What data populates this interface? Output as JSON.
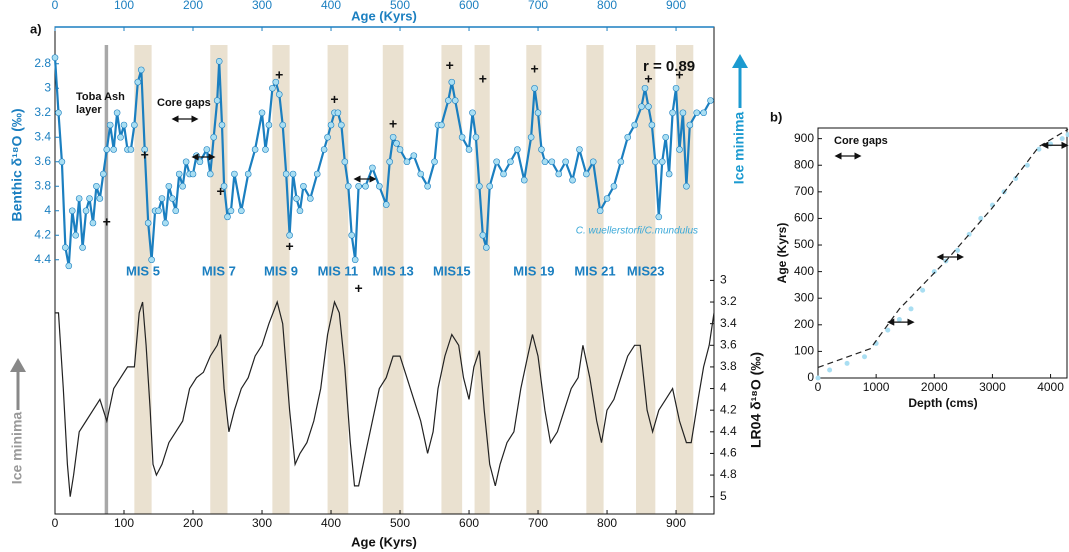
{
  "chart_data": [
    {
      "type": "line",
      "panel_label": "a)",
      "xlabel": "Age (Kyrs)",
      "x2label": "Age (Kyrs)",
      "ylabel": "Benthic δ¹⁸O (‰)",
      "y2label": "LR04 δ¹⁸O (‰)",
      "xlim": [
        0,
        955
      ],
      "xticks": [
        0,
        100,
        200,
        300,
        400,
        500,
        600,
        700,
        800,
        900
      ],
      "ylim": [
        2.5,
        4.5
      ],
      "y_inverted": true,
      "yticks": [
        2.8,
        3,
        3.2,
        3.4,
        3.6,
        3.8,
        4,
        4.2,
        4.4
      ],
      "y2lim": [
        2.95,
        5.16
      ],
      "y2ticks": [
        3,
        3.2,
        3.4,
        3.6,
        3.8,
        4,
        4.2,
        4.4,
        4.6,
        4.8,
        5
      ],
      "series": [
        {
          "color": "#1b7fc0",
          "marker_color": "#a9def2",
          "x": [
            0,
            5,
            10,
            15,
            20,
            25,
            30,
            35,
            40,
            45,
            50,
            55,
            60,
            65,
            70,
            75,
            80,
            85,
            90,
            95,
            100,
            105,
            110,
            115,
            120,
            125,
            130,
            135,
            140,
            145,
            150,
            155,
            160,
            165,
            170,
            175,
            180,
            185,
            190,
            195,
            200,
            205,
            210,
            220,
            225,
            230,
            235,
            238,
            242,
            245,
            250,
            255,
            260,
            270,
            280,
            290,
            300,
            305,
            310,
            315,
            320,
            325,
            330,
            335,
            340,
            345,
            350,
            355,
            360,
            370,
            380,
            390,
            395,
            400,
            405,
            410,
            415,
            420,
            425,
            430,
            435,
            440,
            450,
            460,
            470,
            480,
            485,
            490,
            495,
            500,
            510,
            520,
            530,
            540,
            550,
            555,
            560,
            570,
            575,
            580,
            590,
            600,
            605,
            610,
            615,
            620,
            625,
            630,
            640,
            650,
            660,
            670,
            680,
            690,
            695,
            700,
            705,
            710,
            720,
            730,
            740,
            750,
            760,
            770,
            780,
            790,
            800,
            810,
            820,
            830,
            840,
            850,
            855,
            860,
            865,
            870,
            875,
            880,
            885,
            890,
            895,
            900,
            905,
            910,
            915,
            920,
            930,
            940,
            950
          ],
          "values": [
            2.75,
            3.2,
            3.6,
            4.3,
            4.45,
            4.0,
            4.2,
            3.9,
            4.3,
            4.0,
            3.9,
            4.1,
            3.8,
            3.9,
            3.7,
            3.5,
            3.3,
            3.5,
            3.2,
            3.4,
            3.3,
            3.5,
            3.5,
            3.3,
            2.95,
            2.85,
            3.5,
            4.1,
            4.4,
            4.0,
            4.0,
            3.9,
            4.1,
            3.8,
            3.9,
            4.0,
            3.7,
            3.8,
            3.6,
            3.7,
            3.7,
            3.55,
            3.6,
            3.5,
            3.7,
            3.4,
            3.1,
            2.78,
            3.3,
            3.8,
            4.05,
            4.0,
            3.7,
            4.0,
            3.7,
            3.5,
            3.2,
            3.5,
            3.3,
            3.0,
            2.95,
            3.05,
            3.3,
            3.7,
            4.2,
            3.7,
            3.9,
            4.0,
            3.8,
            3.9,
            3.7,
            3.5,
            3.4,
            3.3,
            3.2,
            3.2,
            3.3,
            3.6,
            3.8,
            4.2,
            4.4,
            3.8,
            3.8,
            3.65,
            3.8,
            3.95,
            3.6,
            3.4,
            3.45,
            3.5,
            3.6,
            3.55,
            3.7,
            3.8,
            3.6,
            3.3,
            3.3,
            3.1,
            2.95,
            3.1,
            3.4,
            3.5,
            3.2,
            3.4,
            3.8,
            4.2,
            4.3,
            3.8,
            3.6,
            3.7,
            3.6,
            3.5,
            3.75,
            3.4,
            3.0,
            3.2,
            3.5,
            3.6,
            3.6,
            3.7,
            3.6,
            3.75,
            3.5,
            3.7,
            3.6,
            4.0,
            3.9,
            3.8,
            3.6,
            3.4,
            3.3,
            3.15,
            3.0,
            3.15,
            3.3,
            3.6,
            4.05,
            3.6,
            3.4,
            3.7,
            3.2,
            3.0,
            3.5,
            3.2,
            3.8,
            3.3,
            3.2,
            3.2,
            3.1
          ]
        },
        {
          "axis": "y2",
          "color": "#222222",
          "x": [
            0,
            5,
            12,
            18,
            22,
            27,
            35,
            45,
            55,
            65,
            75,
            85,
            95,
            105,
            115,
            122,
            127,
            132,
            138,
            142,
            147,
            155,
            165,
            175,
            185,
            195,
            205,
            215,
            225,
            235,
            240,
            245,
            252,
            260,
            270,
            280,
            290,
            300,
            310,
            322,
            330,
            340,
            348,
            355,
            365,
            375,
            385,
            395,
            405,
            412,
            420,
            428,
            434,
            440,
            450,
            460,
            470,
            480,
            490,
            500,
            510,
            520,
            530,
            540,
            548,
            555,
            565,
            575,
            585,
            592,
            600,
            607,
            615,
            622,
            630,
            638,
            645,
            655,
            665,
            675,
            685,
            692,
            700,
            710,
            718,
            728,
            738,
            748,
            758,
            765,
            775,
            785,
            792,
            800,
            810,
            820,
            830,
            840,
            848,
            858,
            866,
            875,
            885,
            895,
            905,
            915,
            922,
            932,
            940,
            948,
            955
          ],
          "values": [
            3.3,
            3.3,
            4.0,
            4.7,
            5.0,
            4.8,
            4.4,
            4.3,
            4.2,
            4.1,
            4.3,
            4.0,
            3.9,
            3.8,
            3.8,
            3.3,
            3.2,
            3.6,
            4.2,
            4.7,
            4.8,
            4.7,
            4.5,
            4.4,
            4.3,
            4.0,
            3.9,
            3.85,
            3.7,
            3.6,
            3.5,
            4.0,
            4.4,
            4.2,
            4.0,
            3.9,
            3.7,
            3.6,
            3.4,
            3.2,
            3.4,
            4.2,
            4.7,
            4.6,
            4.5,
            4.3,
            4.0,
            3.5,
            3.2,
            3.3,
            3.8,
            4.5,
            4.9,
            4.9,
            4.6,
            4.3,
            4.0,
            3.9,
            3.7,
            3.7,
            3.9,
            4.1,
            4.3,
            4.6,
            4.4,
            4.0,
            3.7,
            3.5,
            3.6,
            3.9,
            4.1,
            3.8,
            3.65,
            4.2,
            4.7,
            4.9,
            4.7,
            4.5,
            4.4,
            4.0,
            3.7,
            3.5,
            3.7,
            4.2,
            4.5,
            4.4,
            4.2,
            4.0,
            3.9,
            3.6,
            3.9,
            4.3,
            4.5,
            4.2,
            4.1,
            3.9,
            3.7,
            3.6,
            3.6,
            4.2,
            4.4,
            4.2,
            4.1,
            4.0,
            4.3,
            4.5,
            4.5,
            4.1,
            3.8,
            3.6,
            3.3
          ]
        }
      ],
      "bands": [
        {
          "label": "MIS 5",
          "start": 115,
          "end": 140
        },
        {
          "label": "MIS 7",
          "start": 225,
          "end": 250
        },
        {
          "label": "MIS 9",
          "start": 315,
          "end": 340
        },
        {
          "label": "MIS 11",
          "start": 395,
          "end": 425
        },
        {
          "label": "MIS 13",
          "start": 475,
          "end": 505
        },
        {
          "label": "MIS15",
          "start": 560,
          "end": 590
        },
        {
          "label": null,
          "start": 608,
          "end": 630
        },
        {
          "label": "MIS 19",
          "start": 683,
          "end": 705
        },
        {
          "label": "MIS 21",
          "start": 770,
          "end": 795
        },
        {
          "label": "MIS23",
          "start": 842,
          "end": 870
        },
        {
          "label": null,
          "start": 900,
          "end": 925
        }
      ],
      "toba_age": [
        72,
        77
      ],
      "plus": {
        "text": "+",
        "x": [
          75,
          130,
          240,
          325,
          340,
          405,
          440,
          490,
          572,
          620,
          695,
          860,
          905
        ],
        "values": [
          4.1,
          3.55,
          3.85,
          2.9,
          4.3,
          3.1,
          4.64,
          3.3,
          2.82,
          2.93,
          2.85,
          2.93,
          2.9
        ]
      },
      "annotations": {
        "toba": [
          "Toba Ash",
          "layer"
        ],
        "core_gaps": "Core gaps",
        "r": "r = 0.89",
        "species": "C. wuellerstorfi/C.mundulus",
        "ice_minima_right": "Ice minima",
        "ice_minima_left": "Ice minima"
      }
    },
    {
      "type": "scatter",
      "panel_label": "b)",
      "xlabel": "Depth (cms)",
      "ylabel": "Age (Kyrs)",
      "xlim": [
        0,
        4300
      ],
      "xticks": [
        0,
        1000,
        2000,
        3000,
        4000
      ],
      "ylim": [
        0,
        940
      ],
      "yticks": [
        0,
        100,
        200,
        300,
        400,
        500,
        600,
        700,
        800,
        900
      ],
      "color": "#a9def2",
      "dash_color": "#222222",
      "x": [
        0,
        200,
        500,
        800,
        1000,
        1200,
        1400,
        1600,
        1800,
        2000,
        2200,
        2400,
        2600,
        2800,
        3000,
        3200,
        3400,
        3600,
        3800,
        4000,
        4200,
        4300
      ],
      "values": [
        0,
        30,
        55,
        80,
        130,
        180,
        220,
        260,
        330,
        400,
        440,
        480,
        540,
        600,
        650,
        700,
        750,
        800,
        860,
        880,
        900,
        915
      ],
      "dashed": {
        "x": [
          0,
          900,
          1400,
          2200,
          3000,
          3800,
          4300
        ],
        "values": [
          40,
          110,
          260,
          440,
          640,
          870,
          935
        ]
      },
      "annotations": {
        "core_gaps": "Core gaps"
      }
    }
  ]
}
